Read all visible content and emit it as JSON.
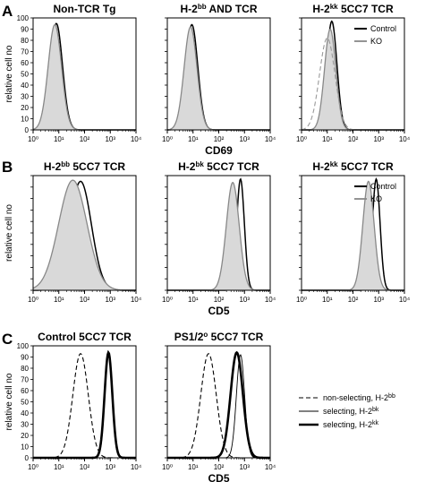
{
  "figure": {
    "panel_labels": [
      "A",
      "B",
      "C"
    ]
  },
  "chart_data": [
    {
      "type": "area",
      "panel": "A",
      "title": "Non-TCR Tg",
      "xlabel": "",
      "ylabel": "relative cell no",
      "x_scale": "log",
      "xlim": [
        1,
        10000
      ],
      "ylim": [
        0,
        100
      ],
      "yticks": [
        0,
        10,
        20,
        30,
        40,
        50,
        60,
        70,
        80,
        90,
        100
      ],
      "xticks": [
        "10⁰",
        "10¹",
        "10²",
        "10³",
        "10⁴"
      ],
      "legend": [],
      "series": [
        {
          "style": "control",
          "peak_x": 8,
          "peak_y": 95,
          "width_decades": 0.24
        },
        {
          "style": "ko",
          "peak_x": 7,
          "peak_y": 94,
          "width_decades": 0.26
        }
      ]
    },
    {
      "type": "area",
      "panel": "A",
      "title": "H-2bb AND TCR",
      "title_parts": {
        "prefix": "H-2",
        "sup": "bb",
        "suffix": " AND TCR"
      },
      "xlabel": "CD69",
      "ylabel": "",
      "x_scale": "log",
      "xlim": [
        1,
        10000
      ],
      "ylim": [
        0,
        100
      ],
      "yticks": [],
      "xticks": [
        "10⁰",
        "10¹",
        "10²",
        "10³",
        "10⁴"
      ],
      "legend": [],
      "series": [
        {
          "style": "control",
          "peak_x": 9,
          "peak_y": 94,
          "width_decades": 0.23
        },
        {
          "style": "ko",
          "peak_x": 8,
          "peak_y": 92,
          "width_decades": 0.25
        }
      ]
    },
    {
      "type": "area",
      "panel": "A",
      "title": "H-2kk 5CC7 TCR",
      "title_parts": {
        "prefix": "H-2",
        "sup": "kk",
        "suffix": " 5CC7 TCR"
      },
      "xlabel": "",
      "ylabel": "",
      "x_scale": "log",
      "xlim": [
        1,
        10000
      ],
      "ylim": [
        0,
        100
      ],
      "yticks": [],
      "xticks": [
        "10⁰",
        "10¹",
        "10²",
        "10³",
        "10⁴"
      ],
      "legend": [
        "Control",
        "KO"
      ],
      "series": [
        {
          "style": "control",
          "peak_x": 15,
          "peak_y": 97,
          "width_decades": 0.2
        },
        {
          "style": "ko",
          "peak_x": 13,
          "peak_y": 90,
          "width_decades": 0.22
        },
        {
          "style": "dashed-grey",
          "peak_x": 10,
          "peak_y": 82,
          "width_decades": 0.3
        }
      ]
    },
    {
      "type": "area",
      "panel": "B",
      "title": "H-2bb 5CC7 TCR",
      "title_parts": {
        "prefix": "H-2",
        "sup": "bb",
        "suffix": " 5CC7 TCR"
      },
      "xlabel": "",
      "ylabel": "relative cell no",
      "x_scale": "log",
      "xlim": [
        1,
        10000
      ],
      "ylim": [
        0,
        100
      ],
      "yticks": [],
      "xticks": [
        "10⁰",
        "10¹",
        "10²",
        "10³",
        "10⁴"
      ],
      "legend": [],
      "series": [
        {
          "style": "control",
          "peak_x": 70,
          "peak_y": 95,
          "width_decades": 0.42
        },
        {
          "style": "ko",
          "peak_x": 35,
          "peak_y": 96,
          "width_decades": 0.55
        }
      ]
    },
    {
      "type": "area",
      "panel": "B",
      "title": "H-2bk 5CC7 TCR",
      "title_parts": {
        "prefix": "H-2",
        "sup": "bk",
        "suffix": " 5CC7 TCR"
      },
      "xlabel": "CD5",
      "ylabel": "",
      "x_scale": "log",
      "xlim": [
        1,
        10000
      ],
      "ylim": [
        0,
        100
      ],
      "yticks": [],
      "xticks": [
        "10⁰",
        "10¹",
        "10²",
        "10³",
        "10⁴"
      ],
      "legend": [],
      "series": [
        {
          "style": "control",
          "peak_x": 700,
          "peak_y": 97,
          "width_decades": 0.15
        },
        {
          "style": "ko",
          "peak_x": 350,
          "peak_y": 94,
          "width_decades": 0.25
        }
      ]
    },
    {
      "type": "area",
      "panel": "B",
      "title": "H-2kk 5CC7 TCR",
      "title_parts": {
        "prefix": "H-2",
        "sup": "kk",
        "suffix": " 5CC7 TCR"
      },
      "xlabel": "",
      "ylabel": "",
      "x_scale": "log",
      "xlim": [
        1,
        10000
      ],
      "ylim": [
        0,
        100
      ],
      "yticks": [],
      "xticks": [
        "10⁰",
        "10¹",
        "10²",
        "10³",
        "10⁴"
      ],
      "legend": [
        "Control",
        "KO"
      ],
      "series": [
        {
          "style": "control",
          "peak_x": 800,
          "peak_y": 97,
          "width_decades": 0.15
        },
        {
          "style": "ko",
          "peak_x": 400,
          "peak_y": 95,
          "width_decades": 0.22
        }
      ]
    },
    {
      "type": "line",
      "panel": "C",
      "title": "Control 5CC7 TCR",
      "xlabel": "",
      "ylabel": "relative cell no",
      "x_scale": "log",
      "xlim": [
        1,
        10000
      ],
      "ylim": [
        0,
        100
      ],
      "yticks": [
        0,
        10,
        20,
        30,
        40,
        50,
        60,
        70,
        80,
        90,
        100
      ],
      "xticks": [
        "10⁰",
        "10¹",
        "10²",
        "10³",
        "10⁴"
      ],
      "legend": [],
      "series": [
        {
          "style": "dashed",
          "peak_x": 70,
          "peak_y": 93,
          "width_decades": 0.3
        },
        {
          "style": "thin",
          "peak_x": 850,
          "peak_y": 92,
          "width_decades": 0.14
        },
        {
          "style": "thick",
          "peak_x": 850,
          "peak_y": 94,
          "width_decades": 0.15
        }
      ]
    },
    {
      "type": "line",
      "panel": "C",
      "title": "PS1/2o 5CC7 TCR",
      "title_parts": {
        "prefix": "PS1/2",
        "sup": "o",
        "suffix": " 5CC7 TCR"
      },
      "xlabel": "CD5",
      "ylabel": "",
      "x_scale": "log",
      "xlim": [
        1,
        10000
      ],
      "ylim": [
        0,
        100
      ],
      "yticks": [],
      "xticks": [
        "10⁰",
        "10¹",
        "10²",
        "10³",
        "10⁴"
      ],
      "legend": [],
      "series": [
        {
          "style": "dashed",
          "peak_x": 40,
          "peak_y": 93,
          "width_decades": 0.3
        },
        {
          "style": "thin",
          "peak_x": 700,
          "peak_y": 92,
          "width_decades": 0.16
        },
        {
          "style": "thick",
          "peak_x": 500,
          "peak_y": 94,
          "width_decades": 0.24
        }
      ]
    }
  ],
  "shared_legend_c": [
    {
      "style": "dashed",
      "label_prefix": "non-selecting, H-2",
      "label_sup": "bb"
    },
    {
      "style": "thin",
      "label_prefix": "selecting, H-2",
      "label_sup": "bk"
    },
    {
      "style": "thick",
      "label_prefix": "selecting, H-2",
      "label_sup": "kk"
    }
  ],
  "colors": {
    "control": "#000000",
    "ko": "#888888",
    "fill": "#d9d9d9",
    "dashed": "#000000",
    "dashed_grey": "#999999"
  }
}
